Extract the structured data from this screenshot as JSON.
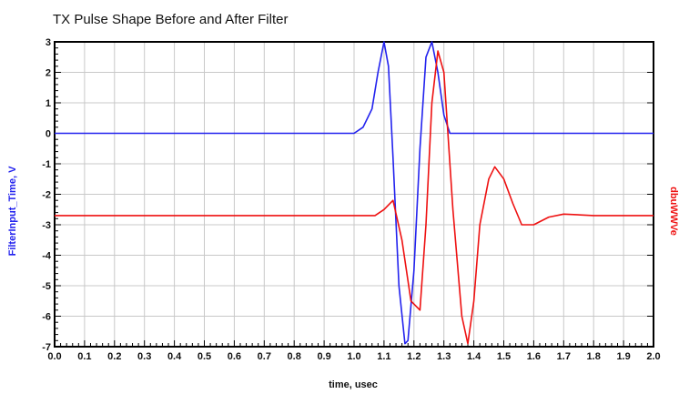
{
  "chart_data": {
    "type": "line",
    "title": "TX Pulse Shape Before and After Filter",
    "xlabel": "time, usec",
    "ylabel_left": "FilterInput_Time, V",
    "ylabel_right": "dbuWWVe",
    "xlim": [
      0.0,
      2.0
    ],
    "ylim_left": [
      -7,
      3
    ],
    "x_ticks": [
      "0.0",
      "0.1",
      "0.2",
      "0.3",
      "0.4",
      "0.5",
      "0.6",
      "0.7",
      "0.8",
      "0.9",
      "1.0",
      "1.1",
      "1.2",
      "1.3",
      "1.4",
      "1.5",
      "1.6",
      "1.7",
      "1.8",
      "1.9",
      "2.0"
    ],
    "y_ticks_left": [
      "3",
      "2",
      "1",
      "0",
      "-1",
      "-2",
      "-3",
      "-4",
      "-5",
      "-6",
      "-7"
    ],
    "grid": true,
    "colors": {
      "series_1": "#2222ee",
      "series_2": "#ee1111",
      "grid": "#c8c8c8",
      "axis": "#000000"
    },
    "series": [
      {
        "axis": "left",
        "x": [
          0.0,
          1.0,
          1.03,
          1.06,
          1.08,
          1.1,
          1.115,
          1.13,
          1.15,
          1.17,
          1.18,
          1.2,
          1.22,
          1.24,
          1.26,
          1.28,
          1.3,
          1.32,
          2.0
        ],
        "y": [
          0.0,
          0.0,
          0.2,
          0.8,
          2.0,
          3.0,
          2.2,
          -0.8,
          -5.0,
          -6.9,
          -6.8,
          -4.5,
          -0.5,
          2.5,
          3.0,
          2.0,
          0.6,
          0.0,
          0.0
        ]
      },
      {
        "axis": "left",
        "x": [
          0.0,
          1.07,
          1.1,
          1.13,
          1.16,
          1.19,
          1.22,
          1.24,
          1.26,
          1.28,
          1.3,
          1.33,
          1.36,
          1.38,
          1.4,
          1.42,
          1.45,
          1.47,
          1.5,
          1.53,
          1.56,
          1.6,
          1.65,
          1.7,
          1.8,
          2.0
        ],
        "y": [
          -2.7,
          -2.7,
          -2.5,
          -2.2,
          -3.5,
          -5.5,
          -5.8,
          -3.0,
          1.0,
          2.7,
          2.0,
          -2.5,
          -6.0,
          -6.9,
          -5.5,
          -3.0,
          -1.5,
          -1.1,
          -1.5,
          -2.3,
          -3.0,
          -3.0,
          -2.75,
          -2.65,
          -2.7,
          -2.7
        ]
      }
    ]
  }
}
